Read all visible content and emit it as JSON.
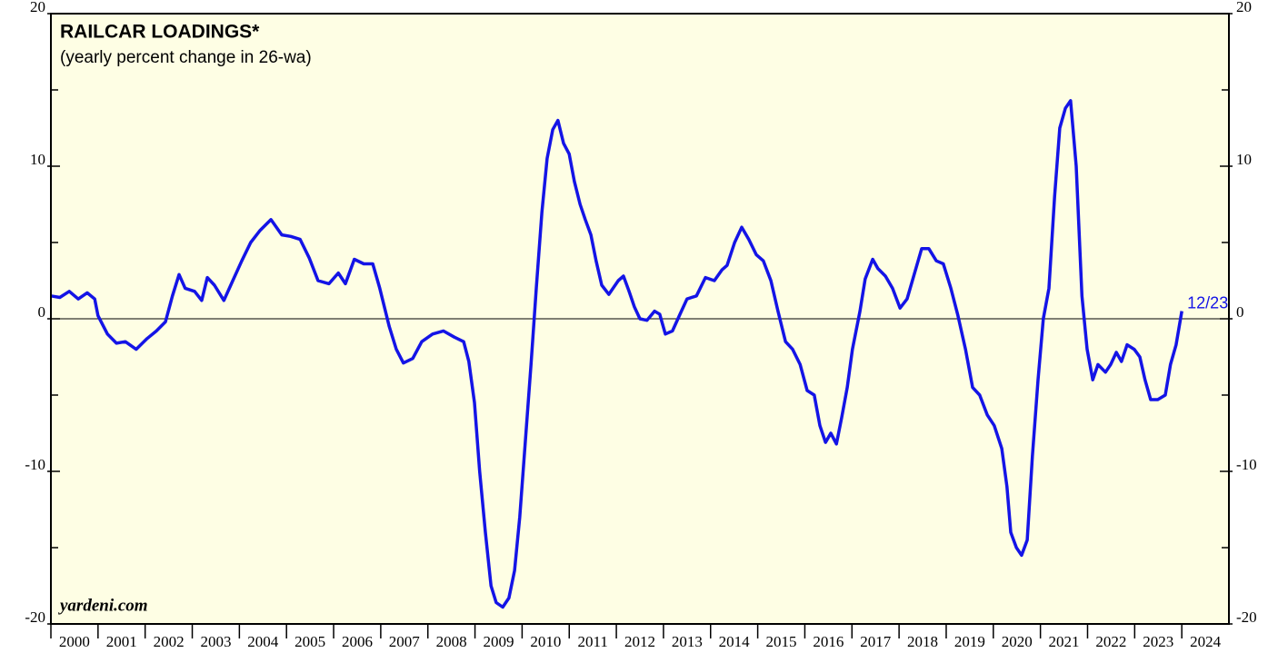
{
  "chart_data": {
    "type": "line",
    "title": "RAILCAR LOADINGS*",
    "subtitle": "(yearly percent change in 26-wa)",
    "source": "yardeni.com",
    "end_label": "12/23",
    "xlim": [
      2000,
      2025
    ],
    "xticks": [
      2000,
      2001,
      2002,
      2003,
      2004,
      2005,
      2006,
      2007,
      2008,
      2009,
      2010,
      2011,
      2012,
      2013,
      2014,
      2015,
      2016,
      2017,
      2018,
      2019,
      2020,
      2021,
      2022,
      2023,
      2024
    ],
    "ylim": [
      -20,
      20
    ],
    "yticks": [
      -20,
      -10,
      0,
      10,
      20
    ],
    "y2lim": [
      -20,
      20
    ],
    "y2ticks": [
      -20,
      -10,
      0,
      10,
      20
    ],
    "yminorticks": [
      -15,
      -5,
      5,
      15
    ],
    "reference_line": 0,
    "background": "#fefee4",
    "series": [
      {
        "name": "Railcar loadings",
        "color": "#1414e6",
        "x": [
          2000.0,
          2000.19,
          2000.39,
          2000.58,
          2000.77,
          2000.93,
          2001.0,
          2001.2,
          2001.39,
          2001.58,
          2001.81,
          2002.04,
          2002.24,
          2002.43,
          2002.58,
          2002.72,
          2002.85,
          2003.05,
          2003.2,
          2003.32,
          2003.47,
          2003.67,
          2003.86,
          2004.05,
          2004.24,
          2004.44,
          2004.67,
          2004.9,
          2005.09,
          2005.29,
          2005.48,
          2005.67,
          2005.9,
          2006.1,
          2006.25,
          2006.44,
          2006.64,
          2006.83,
          2006.98,
          2007.18,
          2007.33,
          2007.48,
          2007.68,
          2007.87,
          2008.1,
          2008.33,
          2008.56,
          2008.76,
          2008.87,
          2008.99,
          2009.1,
          2009.22,
          2009.34,
          2009.45,
          2009.59,
          2009.72,
          2009.84,
          2009.95,
          2010.07,
          2010.19,
          2010.3,
          2010.42,
          2010.53,
          2010.65,
          2010.76,
          2010.88,
          2011.0,
          2011.11,
          2011.23,
          2011.34,
          2011.46,
          2011.57,
          2011.69,
          2011.84,
          2012.04,
          2012.15,
          2012.27,
          2012.38,
          2012.5,
          2012.65,
          2012.81,
          2012.92,
          2013.04,
          2013.19,
          2013.35,
          2013.5,
          2013.7,
          2013.89,
          2014.08,
          2014.24,
          2014.35,
          2014.51,
          2014.66,
          2014.81,
          2014.97,
          2015.12,
          2015.28,
          2015.43,
          2015.59,
          2015.74,
          2015.9,
          2016.05,
          2016.2,
          2016.32,
          2016.44,
          2016.55,
          2016.67,
          2016.78,
          2016.9,
          2017.01,
          2017.17,
          2017.28,
          2017.44,
          2017.55,
          2017.71,
          2017.86,
          2018.02,
          2018.17,
          2018.33,
          2018.48,
          2018.63,
          2018.79,
          2018.94,
          2019.1,
          2019.25,
          2019.41,
          2019.56,
          2019.71,
          2019.87,
          2020.02,
          2020.18,
          2020.29,
          2020.37,
          2020.49,
          2020.6,
          2020.72,
          2020.83,
          2020.95,
          2021.06,
          2021.18,
          2021.3,
          2021.41,
          2021.53,
          2021.64,
          2021.76,
          2021.88,
          2021.99,
          2022.11,
          2022.22,
          2022.38,
          2022.49,
          2022.61,
          2022.72,
          2022.84,
          2022.99,
          2023.11,
          2023.22,
          2023.34,
          2023.49,
          2023.65,
          2023.76,
          2023.88,
          2024.0
        ],
        "values": [
          1.5,
          1.4,
          1.8,
          1.3,
          1.7,
          1.3,
          0.2,
          -1.0,
          -1.6,
          -1.5,
          -2.0,
          -1.3,
          -0.8,
          -0.2,
          1.5,
          2.9,
          2.0,
          1.8,
          1.2,
          2.7,
          2.2,
          1.2,
          2.5,
          3.8,
          5.0,
          5.8,
          6.5,
          5.5,
          5.4,
          5.2,
          4.0,
          2.5,
          2.3,
          3.0,
          2.3,
          3.9,
          3.6,
          3.6,
          2.0,
          -0.5,
          -2.0,
          -2.9,
          -2.6,
          -1.5,
          -1.0,
          -0.8,
          -1.2,
          -1.5,
          -2.8,
          -5.5,
          -10,
          -14,
          -17.5,
          -18.6,
          -18.9,
          -18.3,
          -16.5,
          -13,
          -8,
          -3,
          2,
          7,
          10.5,
          12.4,
          13.0,
          11.5,
          10.8,
          9.0,
          7.5,
          6.5,
          5.5,
          3.8,
          2.2,
          1.6,
          2.5,
          2.8,
          1.8,
          0.8,
          0,
          -0.1,
          0.5,
          0.3,
          -1.0,
          -0.8,
          0.3,
          1.3,
          1.5,
          2.7,
          2.5,
          3.2,
          3.5,
          5.0,
          6.0,
          5.2,
          4.2,
          3.8,
          2.5,
          0.5,
          -1.5,
          -2.0,
          -3.0,
          -4.7,
          -5.0,
          -7.0,
          -8.1,
          -7.5,
          -8.2,
          -6.5,
          -4.5,
          -2.0,
          0.5,
          2.6,
          3.9,
          3.3,
          2.8,
          2.0,
          0.7,
          1.3,
          3.0,
          4.6,
          4.6,
          3.8,
          3.6,
          2.0,
          0.2,
          -2.0,
          -4.5,
          -5.0,
          -6.3,
          -7.0,
          -8.5,
          -11,
          -14,
          -15.0,
          -15.5,
          -14.5,
          -9.0,
          -4.0,
          0.0,
          2.0,
          8.0,
          12.5,
          13.8,
          14.3,
          10.0,
          1.5,
          -2.0,
          -4.0,
          -3.0,
          -3.5,
          -3.0,
          -2.2,
          -2.8,
          -1.7,
          -2.0,
          -2.5,
          -4.0,
          -5.3,
          -5.3,
          -5.0,
          -3.0,
          -1.7,
          0.5
        ]
      }
    ]
  }
}
